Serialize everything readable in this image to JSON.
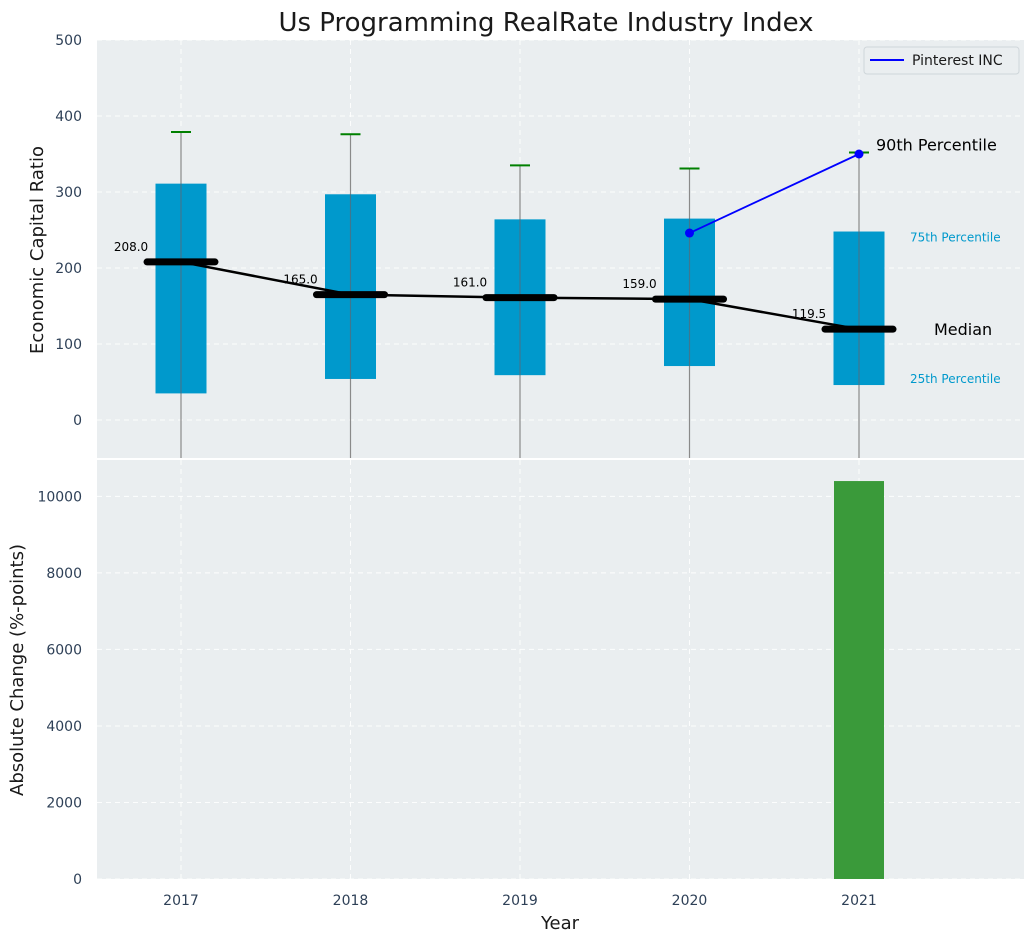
{
  "chart_data": {
    "type": "bar",
    "title": "Us Programming RealRate Industry Index",
    "xlabel": "Year",
    "categories": [
      "2017",
      "2018",
      "2019",
      "2020",
      "2021"
    ],
    "colors": {
      "box": "#0099cc",
      "median": "#000000",
      "whisker_cap": "#008000",
      "company": "#0000ff",
      "bar": "#3a9a3a",
      "panel_bg": "#eaeef0",
      "pct_label": "#0099cc"
    },
    "top_panel": {
      "ylabel": "Economic Capital Ratio",
      "ylim": [
        -50,
        500
      ],
      "yticks": [
        0,
        100,
        200,
        300,
        400,
        500
      ],
      "grid": true,
      "box": {
        "p25": [
          35,
          54,
          59,
          71,
          46
        ],
        "p75": [
          311,
          297,
          264,
          265,
          248
        ],
        "p90": [
          379,
          376,
          335,
          331,
          352
        ],
        "median": [
          208.0,
          165.0,
          161.0,
          159.0,
          119.5
        ],
        "median_labels": [
          "208.0",
          "165.0",
          "161.0",
          "159.0",
          "119.5"
        ]
      },
      "company_series": {
        "name": "Pinterest INC",
        "x": [
          "2020",
          "2021"
        ],
        "values": [
          246,
          350
        ]
      },
      "legend": {
        "position": "top-right",
        "entries": [
          "Pinterest INC"
        ]
      },
      "annotations": {
        "p90": "90th Percentile",
        "p75": "75th Percentile",
        "median": "Median",
        "p25": "25th Percentile"
      }
    },
    "bottom_panel": {
      "type": "bar",
      "ylabel": "Absolute Change (%-points)",
      "ylim": [
        0,
        10950
      ],
      "yticks": [
        0,
        2000,
        4000,
        6000,
        8000,
        10000
      ],
      "grid": true,
      "values": [
        0,
        0,
        0,
        0,
        10400
      ]
    }
  }
}
